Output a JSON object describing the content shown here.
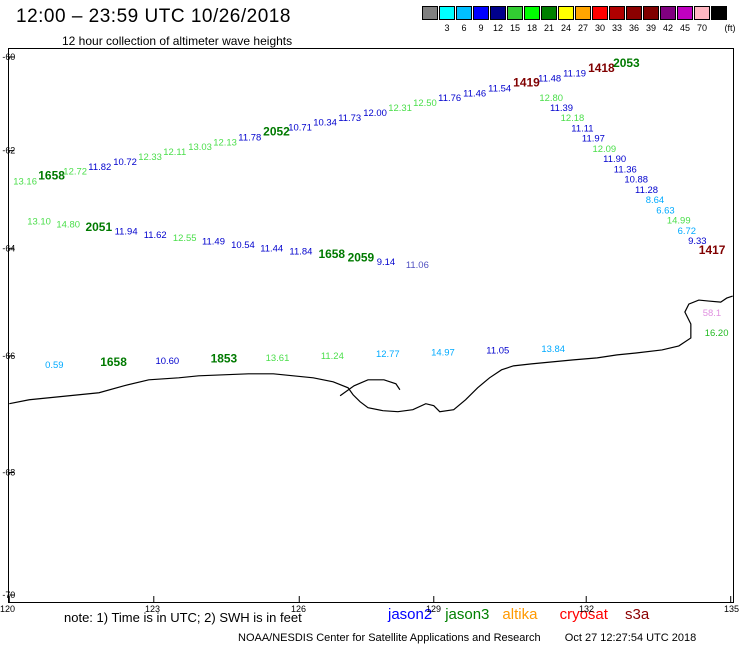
{
  "header": {
    "title": "12:00 – 23:59 UTC 10/26/2018",
    "subtitle": "12 hour collection of altimeter wave heights"
  },
  "legend": {
    "unit_label": "(ft)",
    "items": [
      {
        "color": "#808080",
        "label": ""
      },
      {
        "color": "#00ffff",
        "label": "3"
      },
      {
        "color": "#00bfff",
        "label": "6"
      },
      {
        "color": "#0000ff",
        "label": "9"
      },
      {
        "color": "#00008b",
        "label": "12"
      },
      {
        "color": "#32cd32",
        "label": "15"
      },
      {
        "color": "#00ff00",
        "label": "18"
      },
      {
        "color": "#008000",
        "label": "21"
      },
      {
        "color": "#ffff00",
        "label": "24"
      },
      {
        "color": "#ffa500",
        "label": "27"
      },
      {
        "color": "#ff0000",
        "label": "30"
      },
      {
        "color": "#b00000",
        "label": "33"
      },
      {
        "color": "#8b0000",
        "label": "36"
      },
      {
        "color": "#800000",
        "label": "39"
      },
      {
        "color": "#800080",
        "label": "42"
      },
      {
        "color": "#c000c0",
        "label": "45"
      },
      {
        "color": "#ffb6c1",
        "label": "70"
      },
      {
        "color": "#000000",
        "label": ""
      }
    ]
  },
  "axes": {
    "lat_labels": [
      "-60",
      "-62",
      "-64",
      "-66",
      "-68",
      "-70"
    ],
    "lon_labels": [
      "120",
      "123",
      "126",
      "129",
      "132",
      "135"
    ]
  },
  "tracks": {
    "upper_track": [
      {
        "t": "13.16",
        "c": "#4ade4a"
      },
      {
        "t": "1658",
        "c": "#007a00",
        "bold": true
      },
      {
        "t": "12.72",
        "c": "#4ade4a"
      },
      {
        "t": "11.82",
        "c": "#0000cd"
      },
      {
        "t": "10.72",
        "c": "#0000cd"
      },
      {
        "t": "12.33",
        "c": "#4ade4a"
      },
      {
        "t": "12.11",
        "c": "#4ade4a"
      },
      {
        "t": "13.03",
        "c": "#4ade4a"
      },
      {
        "t": "12.13",
        "c": "#4ade4a"
      },
      {
        "t": "11.78",
        "c": "#0000cd"
      },
      {
        "t": "2052",
        "c": "#007a00",
        "bold": true
      },
      {
        "t": "10.71",
        "c": "#0000cd"
      },
      {
        "t": "10.34",
        "c": "#0000cd"
      },
      {
        "t": "11.73",
        "c": "#0000cd"
      },
      {
        "t": "12.00",
        "c": "#0000cd"
      },
      {
        "t": "12.31",
        "c": "#4ade4a"
      },
      {
        "t": "12.50",
        "c": "#4ade4a"
      },
      {
        "t": "11.76",
        "c": "#0000cd"
      },
      {
        "t": "11.46",
        "c": "#0000cd"
      },
      {
        "t": "11.54",
        "c": "#0000cd"
      },
      {
        "t": "1419",
        "c": "#800000",
        "bold": true
      },
      {
        "t": "11.48",
        "c": "#0000cd"
      },
      {
        "t": "11.19",
        "c": "#0000cd"
      },
      {
        "t": "1418",
        "c": "#800000",
        "bold": true
      },
      {
        "t": "2053",
        "c": "#007a00",
        "bold": true
      }
    ],
    "right_track": [
      {
        "t": "12.80",
        "c": "#4ade4a"
      },
      {
        "t": "11.39",
        "c": "#0000cd"
      },
      {
        "t": "12.18",
        "c": "#4ade4a"
      },
      {
        "t": "11.11",
        "c": "#0000cd"
      },
      {
        "t": "11.97",
        "c": "#0000cd"
      },
      {
        "t": "12.09",
        "c": "#4ade4a"
      },
      {
        "t": "11.90",
        "c": "#0000cd"
      },
      {
        "t": "11.36",
        "c": "#0000cd"
      },
      {
        "t": "10.88",
        "c": "#0000cd"
      },
      {
        "t": "11.28",
        "c": "#0000cd"
      },
      {
        "t": "8.64",
        "c": "#00aaff"
      },
      {
        "t": "6.63",
        "c": "#00aaff"
      },
      {
        "t": "14.99",
        "c": "#4ade4a"
      },
      {
        "t": "6.72",
        "c": "#00aaff"
      },
      {
        "t": "9.33",
        "c": "#0000cd"
      },
      {
        "t": "1417",
        "c": "#800000",
        "bold": true
      }
    ],
    "middle_track": [
      {
        "t": "13.10",
        "c": "#4ade4a"
      },
      {
        "t": "14.80",
        "c": "#4ade4a"
      },
      {
        "t": "2051",
        "c": "#007a00",
        "bold": true
      },
      {
        "t": "11.94",
        "c": "#0000cd"
      },
      {
        "t": "11.62",
        "c": "#0000cd"
      },
      {
        "t": "12.55",
        "c": "#4ade4a"
      },
      {
        "t": "11.49",
        "c": "#0000cd"
      },
      {
        "t": "10.54",
        "c": "#0000cd"
      },
      {
        "t": "11.44",
        "c": "#0000cd"
      },
      {
        "t": "11.84",
        "c": "#0000cd"
      },
      {
        "t": "1658",
        "c": "#007a00",
        "bold": true
      },
      {
        "t": "2059",
        "c": "#007a00",
        "bold": true
      },
      {
        "t": "9.14",
        "c": "#0000cd"
      },
      {
        "t": "11.06",
        "c": "#5050c0"
      }
    ],
    "coast_track": [
      {
        "t": "0.59",
        "c": "#00aaff"
      },
      {
        "t": "1658",
        "c": "#007a00",
        "bold": true
      },
      {
        "t": "10.60",
        "c": "#0000cd"
      },
      {
        "t": "1853",
        "c": "#007a00",
        "bold": true
      },
      {
        "t": "13.61",
        "c": "#4ade4a"
      },
      {
        "t": "11.24",
        "c": "#4ade4a"
      },
      {
        "t": "12.77",
        "c": "#00aaff"
      },
      {
        "t": "14.97",
        "c": "#00aaff"
      },
      {
        "t": "11.05",
        "c": "#0000cd"
      },
      {
        "t": "13.84",
        "c": "#00aaff"
      }
    ],
    "east_labels": [
      {
        "t": "58.1",
        "c": "#e090e0"
      },
      {
        "t": "16.20",
        "c": "#22bb22"
      }
    ]
  },
  "footer": {
    "note": "note: 1) Time is in UTC; 2) SWH is in feet",
    "satellites": [
      {
        "name": "jason2",
        "color": "#0000ff"
      },
      {
        "name": "jason3",
        "color": "#008000"
      },
      {
        "name": "altika",
        "color": "#ff9900"
      },
      {
        "name": "cryosat",
        "color": "#ff0000"
      },
      {
        "name": "s3a",
        "color": "#8b0000"
      }
    ],
    "credits": "NOAA/NESDIS Center for Satellite Applications and Research",
    "timestamp": "Oct 27 12:27:54 UTC 2018"
  }
}
